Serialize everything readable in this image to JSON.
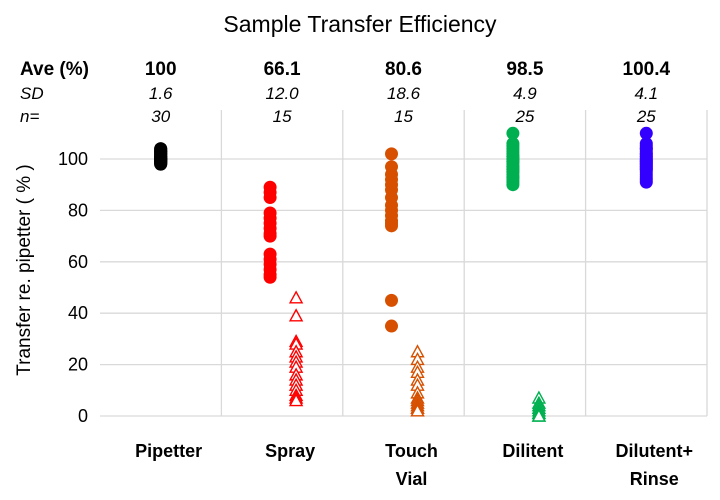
{
  "chart_data": {
    "type": "scatter",
    "title": "Sample Transfer Efficiency",
    "xlabel": "",
    "ylabel": "Transfer re. pipetter ( % )",
    "ylim": [
      0,
      120
    ],
    "yticks": [
      "0",
      "20",
      "40",
      "60",
      "80",
      "100"
    ],
    "grid": true,
    "row_labels": {
      "ave": "Ave (%)",
      "sd": "SD",
      "n": "n="
    },
    "categories": [
      {
        "label": [
          "Pipetter"
        ],
        "ave": "100",
        "sd": "1.6",
        "n": "30",
        "color": "#000000",
        "filled": [
          98,
          98.5,
          99,
          99,
          99.5,
          99.5,
          100,
          100,
          100,
          100,
          100.5,
          100.5,
          101,
          101,
          101.5,
          102,
          102,
          102.5,
          103,
          103,
          103.5,
          104,
          98,
          99,
          100,
          101,
          102,
          103,
          104,
          98.5
        ],
        "hollow": []
      },
      {
        "label": [
          "Spray"
        ],
        "ave": "66.1",
        "sd": "12.0",
        "n": "15",
        "color": "#ff0000",
        "filled": [
          89,
          87,
          85,
          79,
          77,
          75,
          73,
          71,
          70,
          63,
          61,
          59,
          57,
          55,
          54
        ],
        "hollow": [
          46,
          39,
          29,
          28,
          25,
          23,
          21,
          19,
          16,
          14,
          12,
          10,
          8,
          7,
          6
        ]
      },
      {
        "label": [
          "Touch",
          "Vial"
        ],
        "ave": "80.6",
        "sd": "18.6",
        "n": "15",
        "color": "#d65000",
        "filled": [
          102,
          97,
          94,
          92,
          90,
          88,
          85,
          82,
          80,
          78,
          76,
          75,
          74,
          45,
          35
        ],
        "hollow": [
          25,
          22,
          19,
          17,
          14,
          12,
          9,
          7,
          6,
          5,
          4,
          3,
          3,
          2,
          2
        ]
      },
      {
        "label": [
          "Dilitent"
        ],
        "ave": "98.5",
        "sd": "4.9",
        "n": "25",
        "color": "#00b050",
        "filled": [
          110,
          106,
          105,
          104,
          103,
          102,
          101,
          100,
          99,
          98,
          97,
          97,
          96,
          95,
          94,
          93,
          93,
          92,
          91,
          90,
          99,
          100,
          101,
          96,
          95
        ],
        "hollow": [
          7,
          5,
          4,
          3,
          2,
          1,
          1,
          0,
          0
        ]
      },
      {
        "label": [
          "Dilutent+",
          "Rinse"
        ],
        "ave": "100.4",
        "sd": "4.1",
        "n": "25",
        "color": "#3300ff",
        "filled": [
          110,
          106,
          105,
          104,
          103,
          102,
          101,
          100,
          100,
          99,
          98,
          97,
          97,
          96,
          95,
          94,
          93,
          92,
          91,
          104,
          102,
          101,
          99,
          98,
          96
        ],
        "hollow": []
      }
    ]
  }
}
